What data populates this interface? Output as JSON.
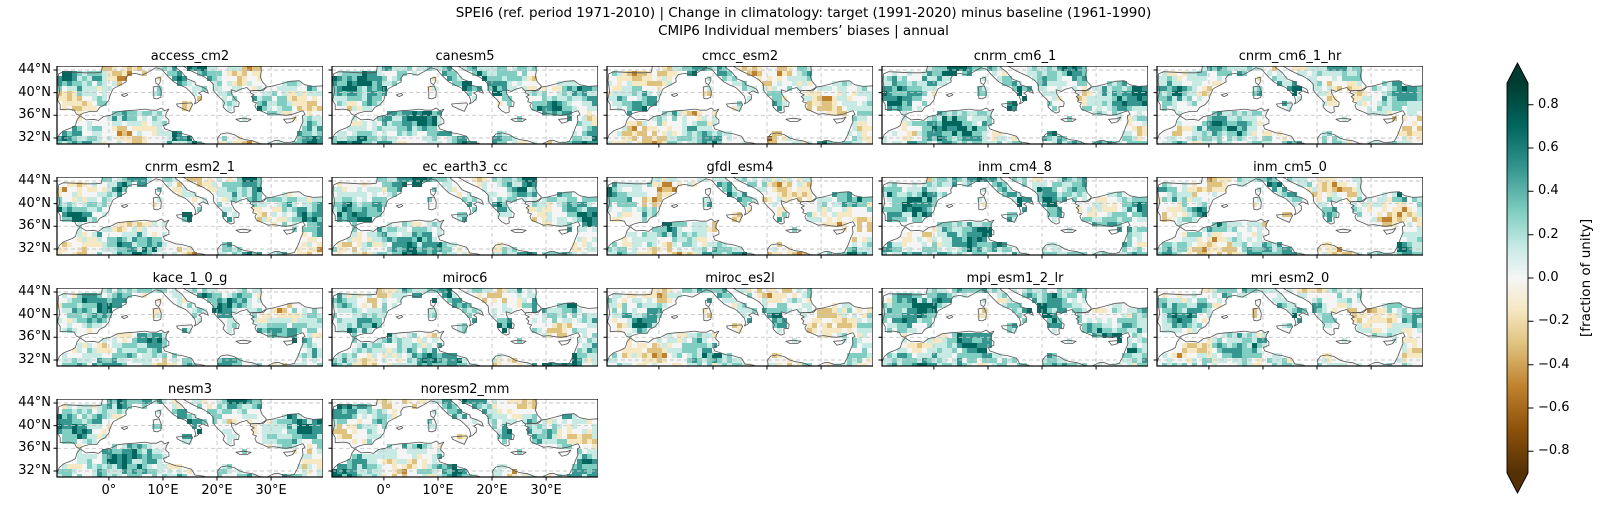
{
  "figure": {
    "title": "SPEI6 (ref. period 1971-2010) | Change in climatology: target (1991-2020) minus baseline (1961-1990)",
    "subtitle": "CMIP6 Individual members’ biases | annual"
  },
  "panels": [
    {
      "title": "access_cm2"
    },
    {
      "title": "canesm5"
    },
    {
      "title": "cmcc_esm2"
    },
    {
      "title": "cnrm_cm6_1"
    },
    {
      "title": "cnrm_cm6_1_hr"
    },
    {
      "title": "cnrm_esm2_1"
    },
    {
      "title": "ec_earth3_cc"
    },
    {
      "title": "gfdl_esm4"
    },
    {
      "title": "inm_cm4_8"
    },
    {
      "title": "inm_cm5_0"
    },
    {
      "title": "kace_1_0_g"
    },
    {
      "title": "miroc6"
    },
    {
      "title": "miroc_es2l"
    },
    {
      "title": "mpi_esm1_2_lr"
    },
    {
      "title": "mri_esm2_0"
    },
    {
      "title": "nesm3"
    },
    {
      "title": "noresm2_mm"
    }
  ],
  "axis": {
    "lat_ticks": [
      "44°N",
      "40°N",
      "36°N",
      "32°N"
    ],
    "lon_ticks": [
      "0°",
      "10°E",
      "20°E",
      "30°E"
    ]
  },
  "colorbar": {
    "label": "[fraction of unity]",
    "ticks": [
      "0.8",
      "0.6",
      "0.4",
      "0.2",
      "0.0",
      "−0.2",
      "−0.4",
      "−0.6",
      "−0.8"
    ],
    "extend": "both",
    "colors": {
      "positive_dark": "#003c30",
      "positive_mid": "#35978f",
      "neutral": "#f5f5f5",
      "negative_mid": "#bf812d",
      "negative_dark": "#543005"
    }
  },
  "chart_data": {
    "type": "heatmap",
    "title": "SPEI6 (ref. period 1971-2010) | Change in climatology: target (1991-2020) minus baseline (1961-1990)",
    "subtitle": "CMIP6 Individual members’ biases | annual",
    "region": "Mediterranean basin (approx. 10°W–40°E, 30°N–45°N), sea masked white",
    "layout": {
      "rows": 4,
      "cols": 5,
      "num_panels": 17,
      "colorbar_position": "right",
      "grid": "dashed graticule at ticks"
    },
    "panel_titles": [
      "access_cm2",
      "canesm5",
      "cmcc_esm2",
      "cnrm_cm6_1",
      "cnrm_cm6_1_hr",
      "cnrm_esm2_1",
      "ec_earth3_cc",
      "gfdl_esm4",
      "inm_cm4_8",
      "inm_cm5_0",
      "kace_1_0_g",
      "miroc6",
      "miroc_es2l",
      "mpi_esm1_2_lr",
      "mri_esm2_0",
      "nesm3",
      "noresm2_mm"
    ],
    "x_tick_labels": [
      "0°",
      "10°E",
      "20°E",
      "30°E"
    ],
    "y_tick_labels": [
      "44°N",
      "40°N",
      "36°N",
      "32°N"
    ],
    "colorbar": {
      "label": "[fraction of unity]",
      "tick_values": [
        0.8,
        0.6,
        0.4,
        0.2,
        0.0,
        -0.2,
        -0.4,
        -0.6,
        -0.8
      ],
      "value_range": [
        -0.9,
        0.9
      ],
      "extend": "both",
      "colormap": "BrBG (dark brown negative → white zero → dark teal positive)"
    },
    "description": "Each panel shows a pixelated (~1°) field of SPEI6 climatology-change bias over Mediterranean land for one CMIP6 member; values are predominantly positive (teal) with localized negative (brown) patches; sea areas are masked white."
  }
}
